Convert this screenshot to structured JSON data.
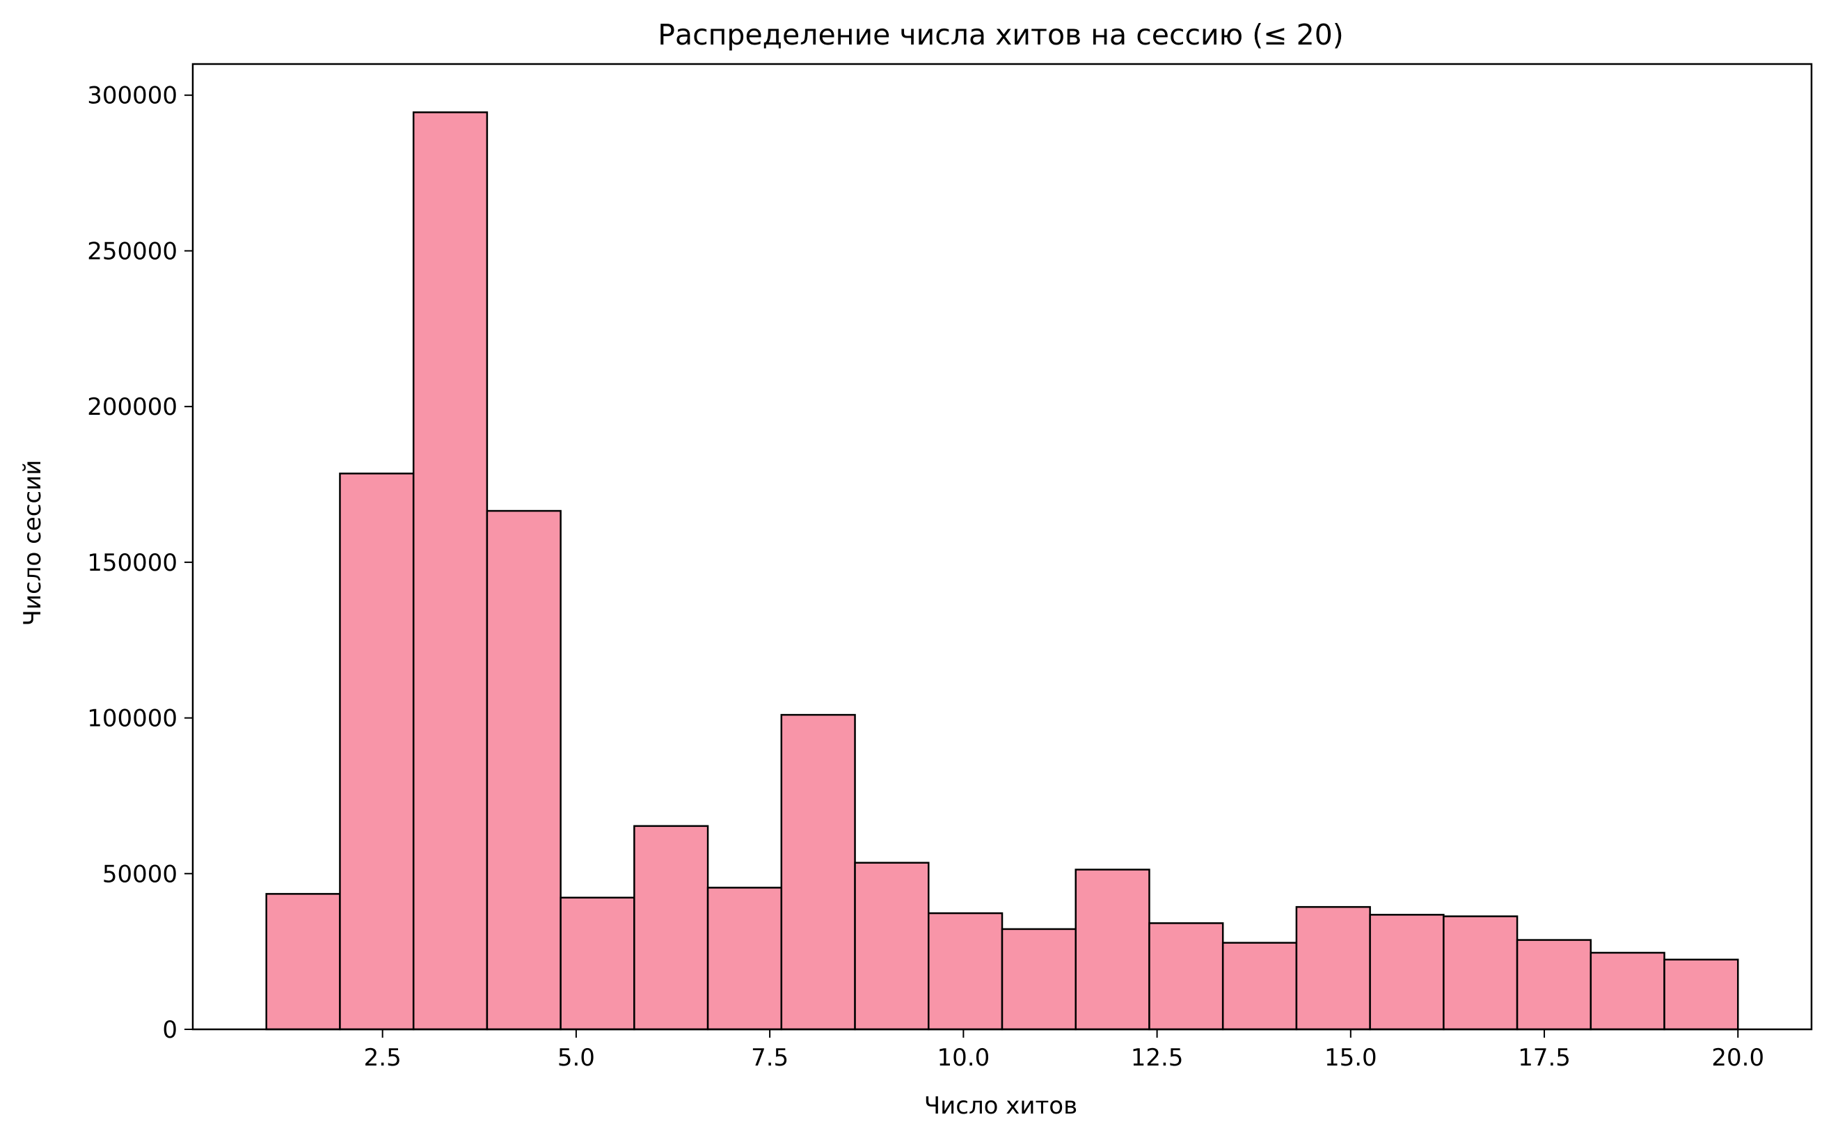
{
  "chart_data": {
    "type": "bar",
    "title": "Распределение числа хитов на сессию (≤ 20)",
    "xlabel": "Число хитов",
    "ylabel": "Число сессий",
    "bar_color": "#f895a8",
    "edge_color": "#000000",
    "xlim": [
      0.05,
      20.95
    ],
    "ylim": [
      0,
      310000
    ],
    "xticks": [
      2.5,
      5.0,
      7.5,
      10.0,
      12.5,
      15.0,
      17.5,
      20.0
    ],
    "xtick_labels": [
      "2.5",
      "5.0",
      "7.5",
      "10.0",
      "12.5",
      "15.0",
      "17.5",
      "20.0"
    ],
    "yticks": [
      0,
      50000,
      100000,
      150000,
      200000,
      250000,
      300000
    ],
    "ytick_labels": [
      "0",
      "50000",
      "100000",
      "150000",
      "200000",
      "250000",
      "300000"
    ],
    "bin_edges": [
      1.0,
      1.95,
      2.9,
      3.85,
      4.8,
      5.75,
      6.7,
      7.65,
      8.6,
      9.55,
      10.5,
      11.45,
      12.4,
      13.35,
      14.3,
      15.25,
      16.2,
      17.15,
      18.1,
      19.05,
      20.0
    ],
    "values": [
      43500,
      178500,
      294500,
      166500,
      42300,
      65300,
      45500,
      101000,
      53500,
      37300,
      32200,
      51300,
      34100,
      27800,
      39300,
      36800,
      36300,
      28700,
      24600,
      22400
    ],
    "grid": false,
    "legend": "none"
  }
}
